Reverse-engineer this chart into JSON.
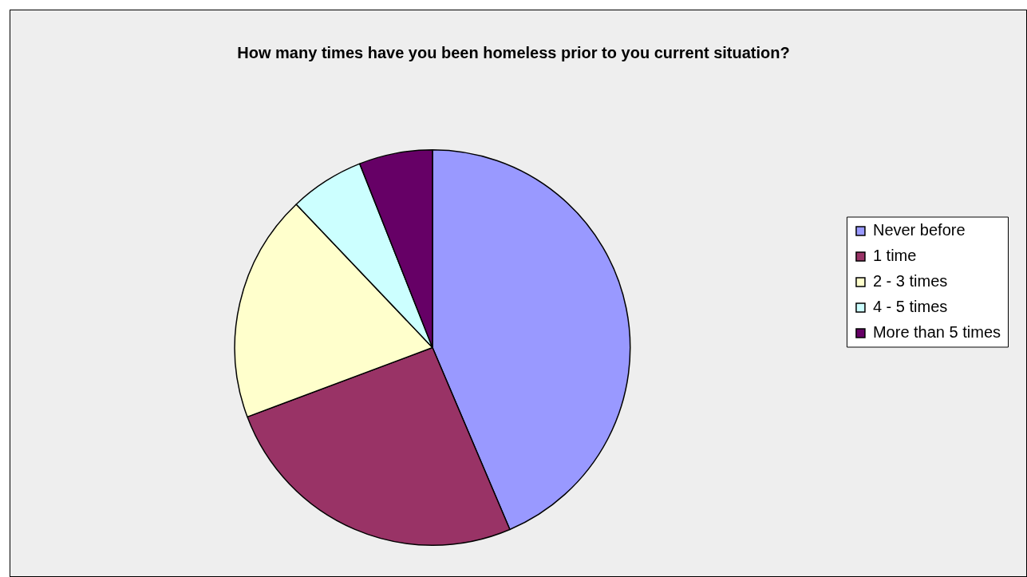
{
  "chart_data": {
    "type": "pie",
    "title": "How many times have you been homeless prior to you current situation?",
    "categories": [
      "Never before",
      "1 time",
      "2 - 3 times",
      "4 - 5 times",
      "More than 5 times"
    ],
    "values": [
      43.6,
      25.7,
      18.6,
      6.1,
      6.0
    ],
    "colors": [
      "#9999ff",
      "#993366",
      "#ffffcc",
      "#ccffff",
      "#660066"
    ],
    "legend": "right"
  }
}
